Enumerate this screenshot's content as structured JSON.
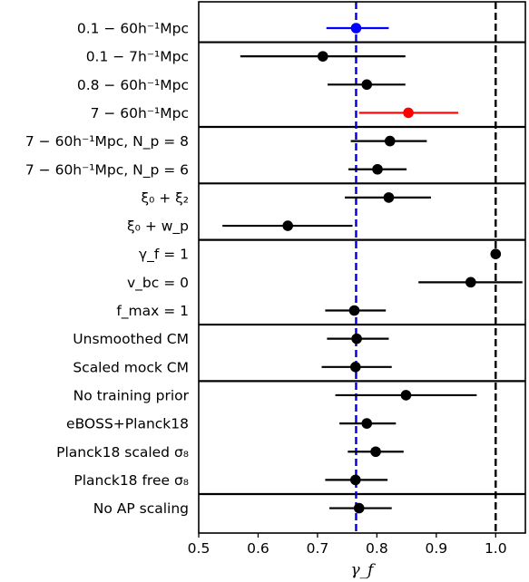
{
  "chart_data": {
    "type": "scatter",
    "subtype": "forest-plot",
    "xlabel": "γ_f",
    "xlim": [
      0.5,
      1.05
    ],
    "xticks": [
      "0.5",
      "0.6",
      "0.7",
      "0.8",
      "0.9",
      "1.0"
    ],
    "reference_lines": [
      {
        "x": 0.765,
        "color": "#0000cc",
        "style": "dashed"
      },
      {
        "x": 1.0,
        "color": "#000000",
        "style": "dashed"
      }
    ],
    "rows": [
      {
        "label": "0.1 − 60h⁻¹Mpc",
        "value": 0.765,
        "lo": 0.715,
        "hi": 0.82,
        "color": "#0000ff"
      },
      {
        "label": "0.1 − 7h⁻¹Mpc",
        "value": 0.709,
        "lo": 0.57,
        "hi": 0.848,
        "color": "#000000"
      },
      {
        "label": "0.8 − 60h⁻¹Mpc",
        "value": 0.783,
        "lo": 0.717,
        "hi": 0.848,
        "color": "#000000"
      },
      {
        "label": "7 − 60h⁻¹Mpc",
        "value": 0.853,
        "lo": 0.77,
        "hi": 0.937,
        "color": "#ff0000"
      },
      {
        "label": "7 − 60h⁻¹Mpc, N_p = 8",
        "value": 0.822,
        "lo": 0.756,
        "hi": 0.884,
        "color": "#000000"
      },
      {
        "label": "7 − 60h⁻¹Mpc, N_p = 6",
        "value": 0.801,
        "lo": 0.752,
        "hi": 0.85,
        "color": "#000000"
      },
      {
        "label": "ξ₀ + ξ₂",
        "value": 0.82,
        "lo": 0.746,
        "hi": 0.891,
        "color": "#000000"
      },
      {
        "label": "ξ₀ + w_p",
        "value": 0.65,
        "lo": 0.54,
        "hi": 0.759,
        "color": "#000000"
      },
      {
        "label": "γ_f = 1",
        "value": 1.0,
        "lo": 1.0,
        "hi": 1.0,
        "color": "#000000"
      },
      {
        "label": "v_bc = 0",
        "value": 0.958,
        "lo": 0.87,
        "hi": 1.045,
        "color": "#000000"
      },
      {
        "label": "f_max = 1",
        "value": 0.762,
        "lo": 0.713,
        "hi": 0.815,
        "color": "#000000"
      },
      {
        "label": "Unsmoothed CM",
        "value": 0.766,
        "lo": 0.716,
        "hi": 0.82,
        "color": "#000000"
      },
      {
        "label": "Scaled mock CM",
        "value": 0.764,
        "lo": 0.707,
        "hi": 0.825,
        "color": "#000000"
      },
      {
        "label": "No training prior",
        "value": 0.849,
        "lo": 0.73,
        "hi": 0.968,
        "color": "#000000"
      },
      {
        "label": "eBOSS+Planck18",
        "value": 0.783,
        "lo": 0.737,
        "hi": 0.832,
        "color": "#000000"
      },
      {
        "label": "Planck18 scaled σ₈",
        "value": 0.798,
        "lo": 0.751,
        "hi": 0.845,
        "color": "#000000"
      },
      {
        "label": "Planck18 free σ₈",
        "value": 0.764,
        "lo": 0.713,
        "hi": 0.818,
        "color": "#000000"
      },
      {
        "label": "No AP scaling",
        "value": 0.77,
        "lo": 0.72,
        "hi": 0.825,
        "color": "#000000"
      }
    ],
    "group_separators_after_row": [
      0,
      3,
      5,
      7,
      10,
      12,
      16
    ],
    "grid": false,
    "legend": "none"
  }
}
